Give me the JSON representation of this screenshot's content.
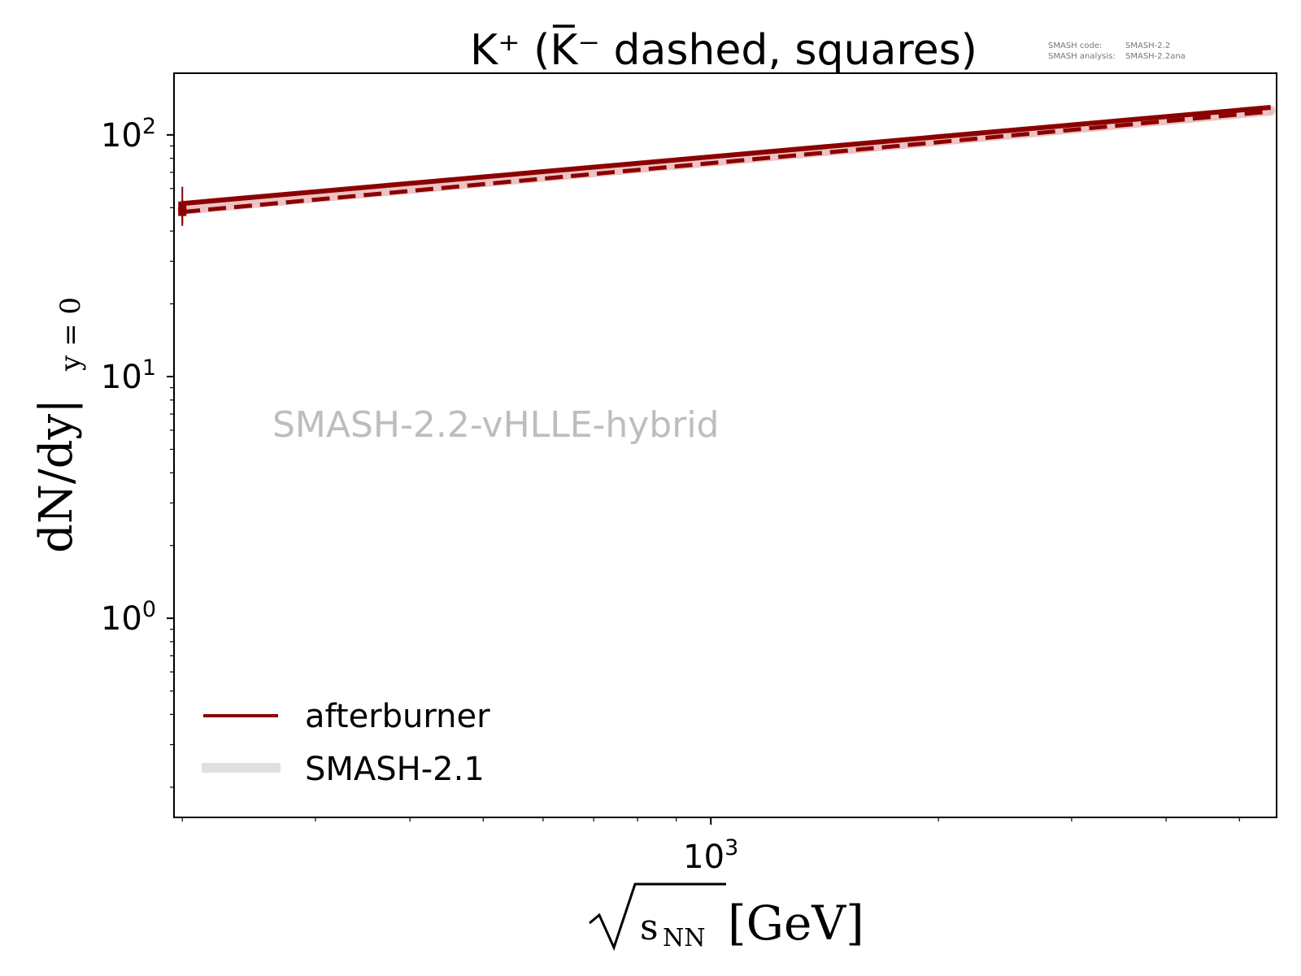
{
  "chart_data": {
    "type": "line",
    "title": "K⁺ (K̅⁻ dashed, squares)",
    "xlabel": {
      "radicand": "s",
      "subscript": "NN",
      "unit": "[GeV]"
    },
    "ylabel": {
      "main": "dN/dy|",
      "subscript": "y = 0"
    },
    "x_scale": "log",
    "y_scale": "log",
    "xlim": [
      195,
      5600
    ],
    "ylim": [
      0.15,
      180
    ],
    "x_tick_labels": [
      {
        "base": "10",
        "exp": "3",
        "value": 1000
      }
    ],
    "y_tick_labels": [
      {
        "base": "10",
        "exp": "0",
        "value": 1
      },
      {
        "base": "10",
        "exp": "1",
        "value": 10
      },
      {
        "base": "10",
        "exp": "2",
        "value": 100
      }
    ],
    "grid": false,
    "legend_placement": "lower-left",
    "legend": [
      "afterburner",
      "SMASH-2.1"
    ],
    "watermark": "SMASH-2.2-vHLLE-hybrid",
    "version_info": [
      {
        "label": "SMASH code:",
        "value": "SMASH-2.2"
      },
      {
        "label": "SMASH analysis:",
        "value": "SMASH-2.2ana"
      }
    ],
    "colors": {
      "afterburner": "#8b0000",
      "smash21": "#e0e0e0",
      "band": "#e8b4b4"
    },
    "series": [
      {
        "name": "afterburner",
        "particle": "K+",
        "style": "solid",
        "x": [
          200,
          5500
        ],
        "y": [
          52,
          130
        ]
      },
      {
        "particle": "K-",
        "style": "dashed",
        "x": [
          200,
          5500
        ],
        "y": [
          48,
          125
        ]
      },
      {
        "particle": "K+",
        "style": "band",
        "x": [
          200,
          5500
        ],
        "y": [
          49,
          126
        ]
      },
      {
        "name": "SMASH-2.1",
        "style": "solid",
        "x": [],
        "y": []
      }
    ],
    "markers": [
      {
        "particle": "K+",
        "shape": "square",
        "x": 200,
        "y": 51,
        "yerr": [
          42,
          61
        ]
      },
      {
        "particle": "K-",
        "shape": "square",
        "x": 200,
        "y": 48,
        "yerr": [
          43,
          54
        ]
      }
    ]
  }
}
